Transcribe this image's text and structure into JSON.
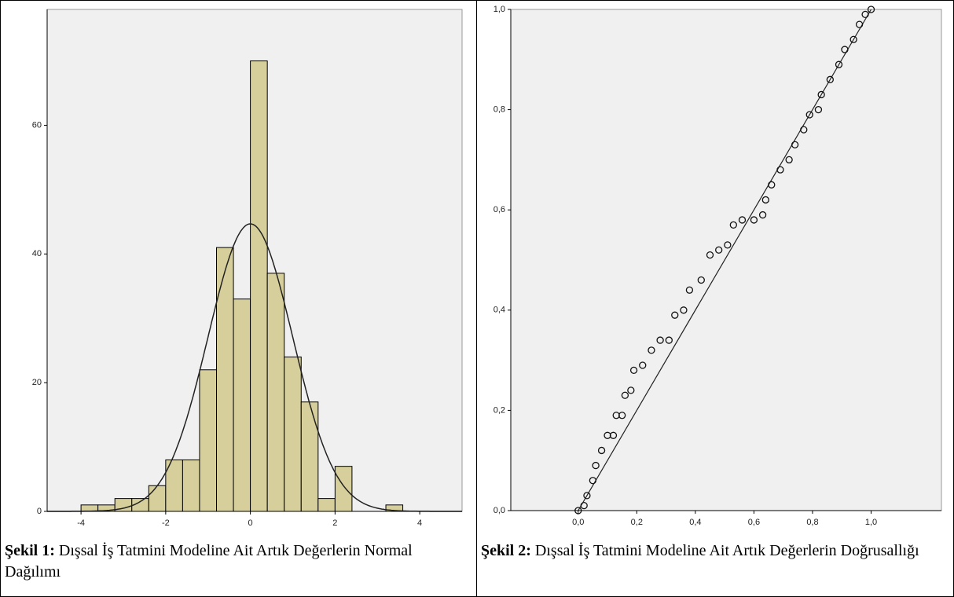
{
  "chart_data": [
    {
      "type": "histogram",
      "bins": [
        -4.0,
        -3.6,
        -3.2,
        -2.8,
        -2.4,
        -2.0,
        -1.6,
        -1.2,
        -0.8,
        -0.4,
        0.0,
        0.4,
        0.8,
        1.2,
        1.6,
        2.0,
        2.4,
        2.8,
        3.2,
        3.6
      ],
      "values": [
        1,
        1,
        2,
        2,
        4,
        8,
        8,
        22,
        41,
        33,
        70,
        37,
        24,
        17,
        2,
        7,
        0,
        0,
        1
      ],
      "color": "#d6cf9c",
      "curve": {
        "mean": 0,
        "sd": 1
      },
      "xlim": [
        -4.8,
        5
      ],
      "ylim": [
        0,
        78
      ],
      "xticks": [
        -4,
        -2,
        0,
        2,
        4
      ],
      "yticks": [
        0,
        20,
        40,
        60
      ],
      "caption_label": "Şekil 1:",
      "caption": "Dışsal İş Tatmini Modeline Ait Artık Değerlerin Normal Dağılımı"
    },
    {
      "type": "scatter",
      "x": [
        0.0,
        0.02,
        0.03,
        0.05,
        0.06,
        0.08,
        0.1,
        0.12,
        0.13,
        0.15,
        0.16,
        0.18,
        0.19,
        0.22,
        0.25,
        0.28,
        0.31,
        0.33,
        0.36,
        0.38,
        0.42,
        0.45,
        0.48,
        0.51,
        0.53,
        0.56,
        0.6,
        0.63,
        0.64,
        0.66,
        0.69,
        0.72,
        0.74,
        0.77,
        0.79,
        0.82,
        0.83,
        0.86,
        0.89,
        0.91,
        0.94,
        0.96,
        0.98,
        1.0
      ],
      "values": [
        0.0,
        0.01,
        0.03,
        0.06,
        0.09,
        0.12,
        0.15,
        0.15,
        0.19,
        0.19,
        0.23,
        0.24,
        0.28,
        0.29,
        0.32,
        0.34,
        0.34,
        0.39,
        0.4,
        0.44,
        0.46,
        0.51,
        0.52,
        0.53,
        0.57,
        0.58,
        0.58,
        0.59,
        0.62,
        0.65,
        0.68,
        0.7,
        0.73,
        0.76,
        0.79,
        0.8,
        0.83,
        0.86,
        0.89,
        0.92,
        0.94,
        0.97,
        0.99,
        1.0
      ],
      "reference_line": {
        "x": [
          0,
          1
        ],
        "y": [
          0,
          1
        ]
      },
      "xlim": [
        -0.23,
        1.24
      ],
      "ylim": [
        0,
        1
      ],
      "xticks": [
        {
          "value": 0,
          "label": "0,0"
        },
        {
          "value": 0.2,
          "label": "0,2"
        },
        {
          "value": 0.4,
          "label": "0,4"
        },
        {
          "value": 0.6,
          "label": "0,6"
        },
        {
          "value": 0.8,
          "label": "0,8"
        },
        {
          "value": 1,
          "label": "1,0"
        }
      ],
      "yticks": [
        {
          "value": 0,
          "label": "0,0"
        },
        {
          "value": 0.2,
          "label": "0,2"
        },
        {
          "value": 0.4,
          "label": "0,4"
        },
        {
          "value": 0.6,
          "label": "0,6"
        },
        {
          "value": 0.8,
          "label": "0,8"
        },
        {
          "value": 1,
          "label": "1,0"
        }
      ],
      "caption_label": "Şekil 2:",
      "caption": "Dışsal İş Tatmini Modeline Ait Artık Değerlerin Doğrusallığı"
    }
  ]
}
